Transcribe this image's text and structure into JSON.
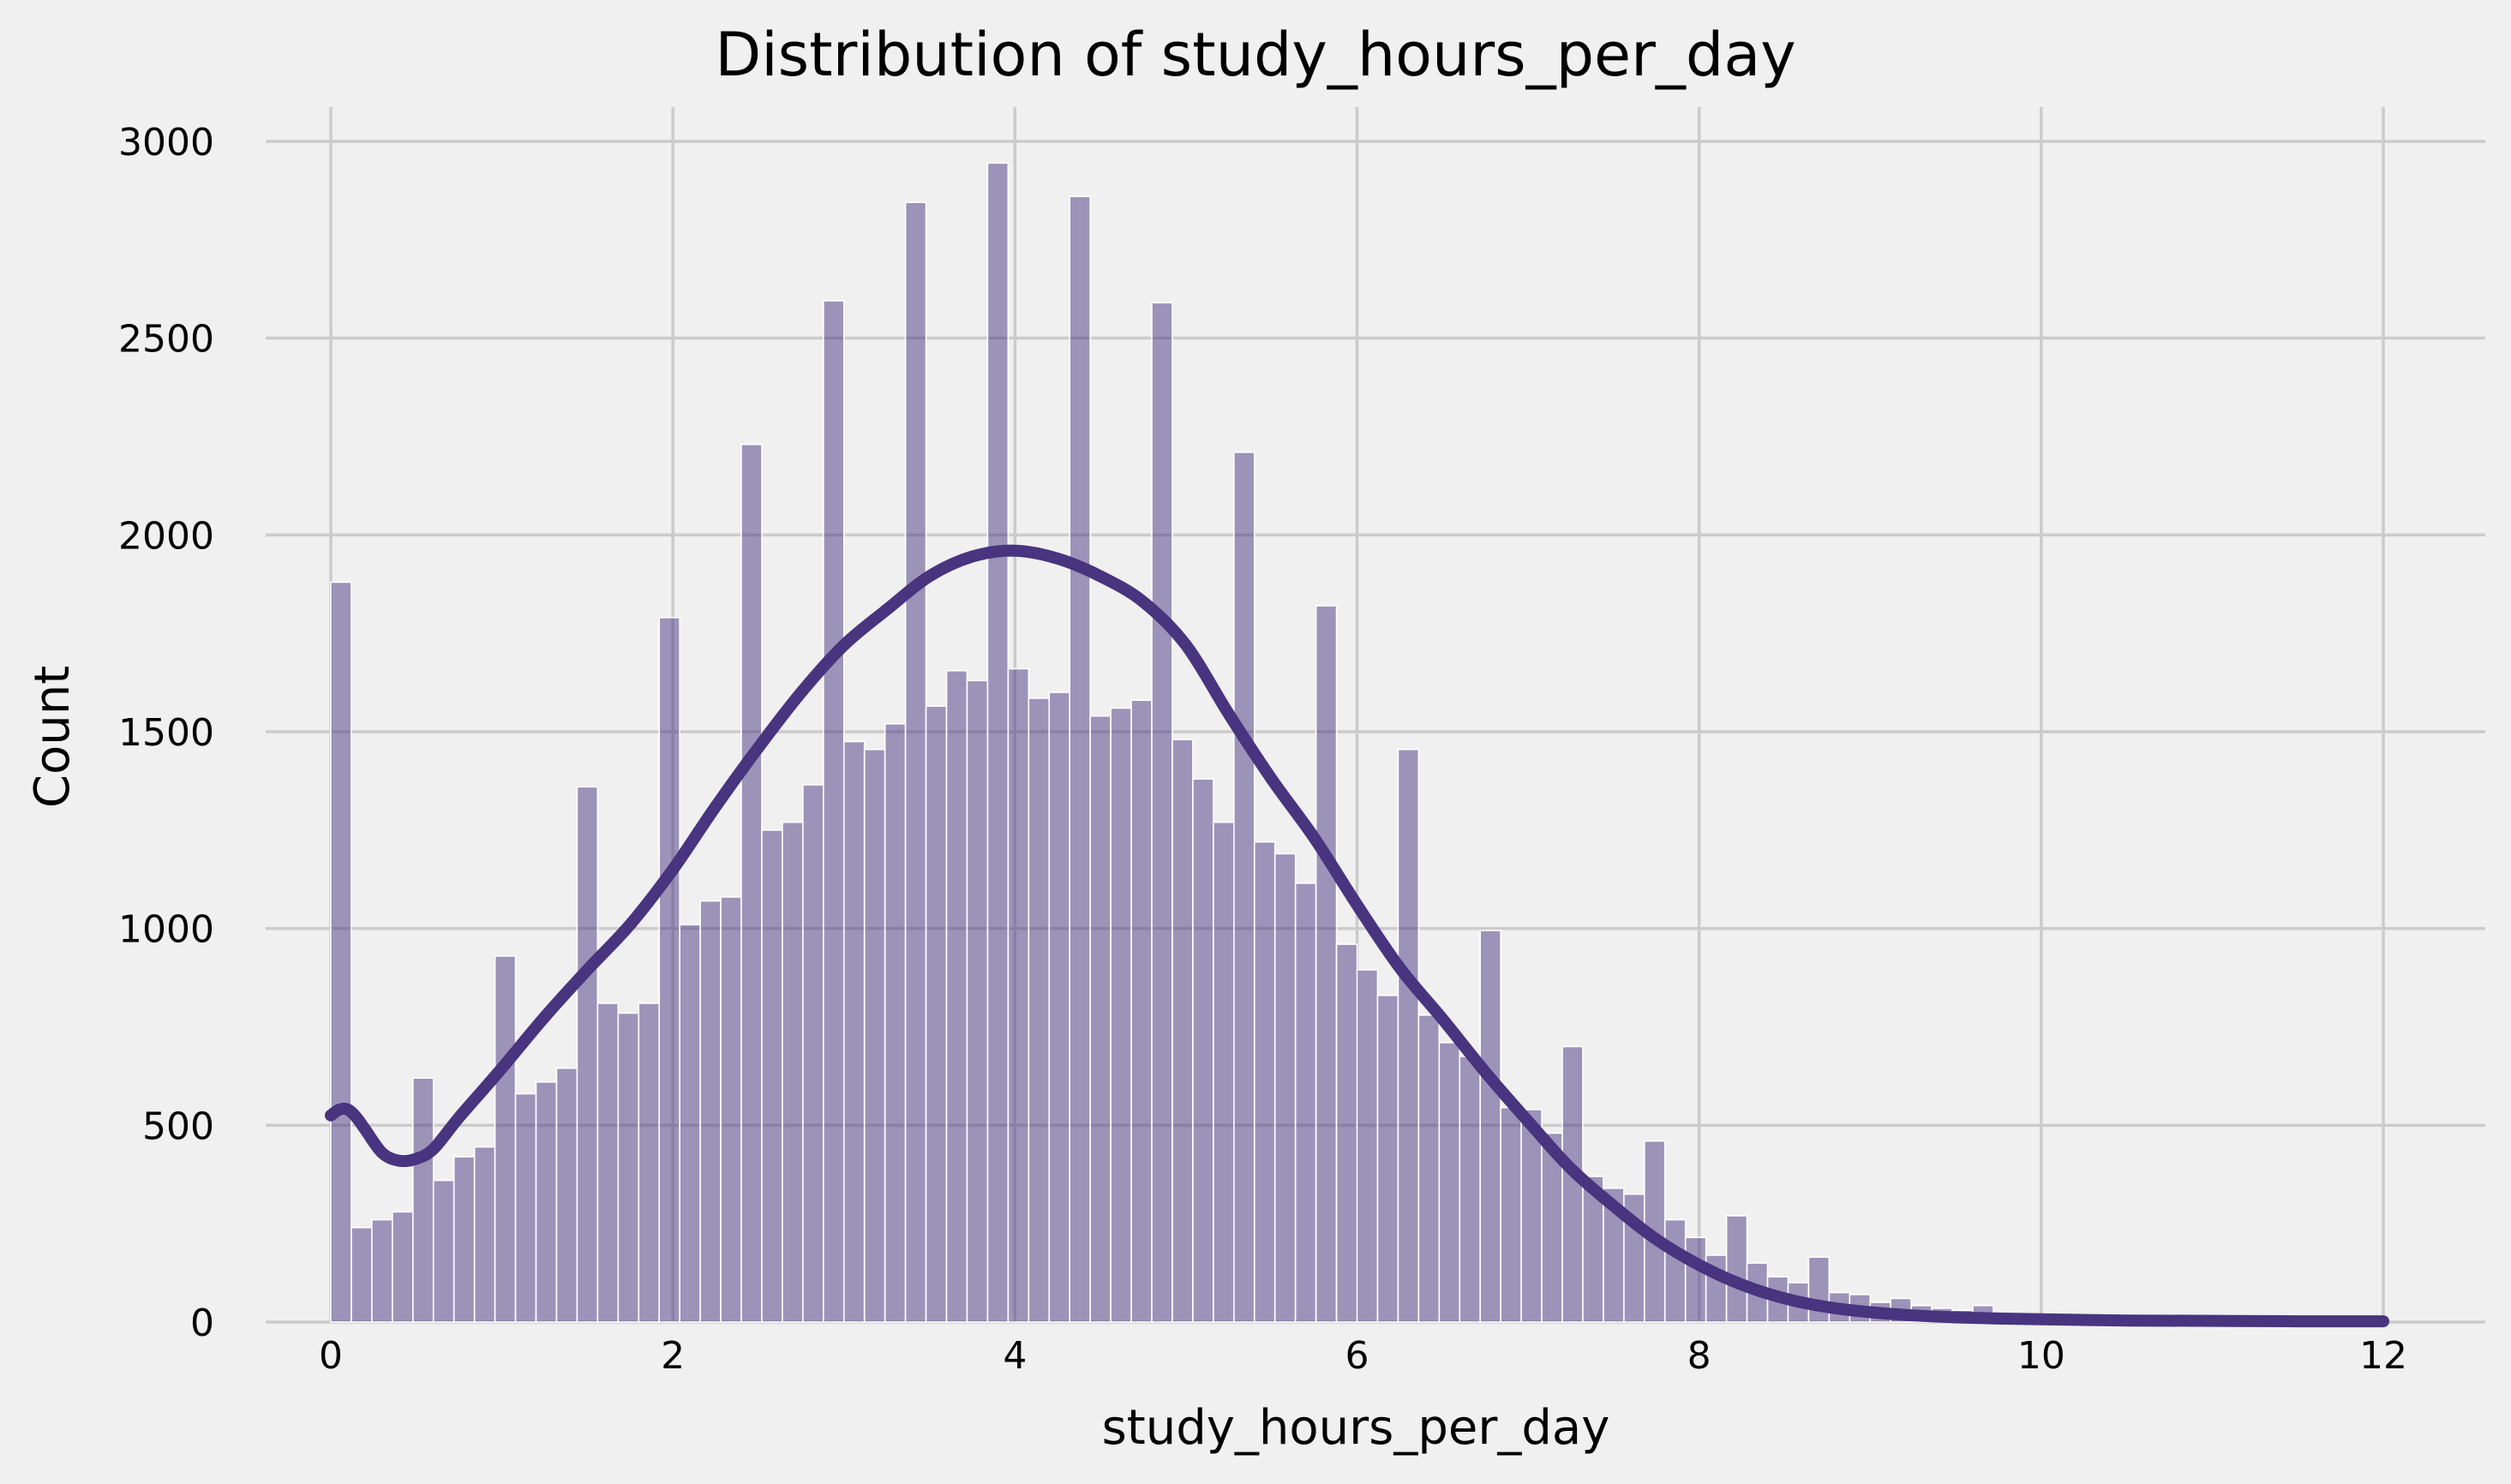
{
  "chart_data": {
    "type": "bar",
    "title": "Distribution of study_hours_per_day",
    "xlabel": "study_hours_per_day",
    "ylabel": "Count",
    "xlim": [
      -0.6,
      12.6
    ],
    "ylim": [
      0,
      3150
    ],
    "x_ticks": [
      "0",
      "2",
      "4",
      "6",
      "8",
      "10",
      "12"
    ],
    "y_ticks": [
      "0",
      "500",
      "1000",
      "1500",
      "2000",
      "2500",
      "3000"
    ],
    "grid": true,
    "bar_color": "#483582",
    "line_color": "#48347f",
    "background": "#f0f0f0",
    "bin_width": 0.12,
    "bins_start": 0,
    "series": [
      {
        "type": "histogram",
        "values": [
          1880,
          240,
          260,
          280,
          620,
          360,
          420,
          445,
          930,
          580,
          610,
          645,
          1360,
          810,
          785,
          810,
          1790,
          1010,
          1070,
          1080,
          2230,
          1250,
          1270,
          1365,
          2595,
          1475,
          1455,
          1520,
          2845,
          1565,
          1655,
          1630,
          2945,
          1660,
          1585,
          1600,
          2860,
          1540,
          1560,
          1580,
          2590,
          1480,
          1380,
          1270,
          2210,
          1220,
          1190,
          1115,
          1820,
          960,
          895,
          830,
          1455,
          780,
          710,
          675,
          995,
          545,
          540,
          480,
          700,
          370,
          340,
          325,
          460,
          260,
          215,
          170,
          270,
          150,
          115,
          100,
          165,
          75,
          70,
          50,
          60,
          42,
          35,
          30,
          42,
          22,
          18,
          15,
          18,
          12,
          10,
          8,
          10,
          6,
          5,
          4,
          5,
          3,
          3,
          2,
          3,
          2,
          2,
          1
        ]
      },
      {
        "type": "kde",
        "x": [
          0,
          0.05,
          0.1,
          0.15,
          0.2,
          0.3,
          0.4,
          0.5,
          0.6,
          0.75,
          1.0,
          1.25,
          1.5,
          1.75,
          2.0,
          2.25,
          2.5,
          2.75,
          3.0,
          3.25,
          3.5,
          3.75,
          4.0,
          4.25,
          4.5,
          4.75,
          5.0,
          5.25,
          5.5,
          5.75,
          6.0,
          6.25,
          6.5,
          6.75,
          7.0,
          7.25,
          7.5,
          7.75,
          8.0,
          8.25,
          8.5,
          8.75,
          9.0,
          9.25,
          9.5,
          9.75,
          10.0,
          10.5,
          11.0,
          11.5,
          12.0
        ],
        "values": [
          525,
          540,
          540,
          520,
          490,
          430,
          410,
          415,
          440,
          520,
          645,
          775,
          895,
          1010,
          1150,
          1310,
          1460,
          1600,
          1720,
          1810,
          1895,
          1945,
          1960,
          1940,
          1895,
          1830,
          1720,
          1545,
          1380,
          1230,
          1060,
          900,
          770,
          635,
          510,
          390,
          295,
          210,
          145,
          95,
          60,
          38,
          25,
          17,
          12,
          9,
          7,
          4,
          3,
          2,
          2
        ]
      }
    ]
  }
}
